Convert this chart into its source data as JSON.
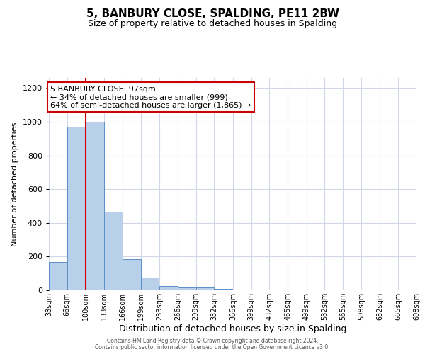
{
  "title": "5, BANBURY CLOSE, SPALDING, PE11 2BW",
  "subtitle": "Size of property relative to detached houses in Spalding",
  "xlabel": "Distribution of detached houses by size in Spalding",
  "ylabel": "Number of detached properties",
  "bins": [
    33,
    66,
    100,
    133,
    166,
    199,
    233,
    266,
    299,
    332,
    366,
    399,
    432,
    465,
    499,
    532,
    565,
    598,
    632,
    665,
    698
  ],
  "counts": [
    170,
    970,
    1000,
    465,
    185,
    75,
    25,
    18,
    15,
    10,
    0,
    0,
    0,
    0,
    0,
    0,
    0,
    0,
    0,
    0
  ],
  "bar_color": "#b8d0ea",
  "bar_edge_color": "#5b8fc9",
  "red_line_x": 100,
  "annotation_title": "5 BANBURY CLOSE: 97sqm",
  "annotation_line1": "← 34% of detached houses are smaller (999)",
  "annotation_line2": "64% of semi-detached houses are larger (1,865) →",
  "annotation_box_color": "#ffffff",
  "annotation_box_edge_color": "#cc0000",
  "red_line_color": "#cc0000",
  "ylim": [
    0,
    1260
  ],
  "yticks": [
    0,
    200,
    400,
    600,
    800,
    1000,
    1200
  ],
  "tick_labels": [
    "33sqm",
    "66sqm",
    "100sqm",
    "133sqm",
    "166sqm",
    "199sqm",
    "233sqm",
    "266sqm",
    "299sqm",
    "332sqm",
    "366sqm",
    "399sqm",
    "432sqm",
    "465sqm",
    "499sqm",
    "532sqm",
    "565sqm",
    "598sqm",
    "632sqm",
    "665sqm",
    "698sqm"
  ],
  "footer1": "Contains HM Land Registry data © Crown copyright and database right 2024.",
  "footer2": "Contains public sector information licensed under the Open Government Licence v3.0.",
  "grid_color": "#d0d8e8",
  "bg_color": "#ffffff",
  "title_fontsize": 11,
  "subtitle_fontsize": 9,
  "ylabel_fontsize": 8,
  "xlabel_fontsize": 9,
  "ytick_fontsize": 8,
  "xtick_fontsize": 7
}
